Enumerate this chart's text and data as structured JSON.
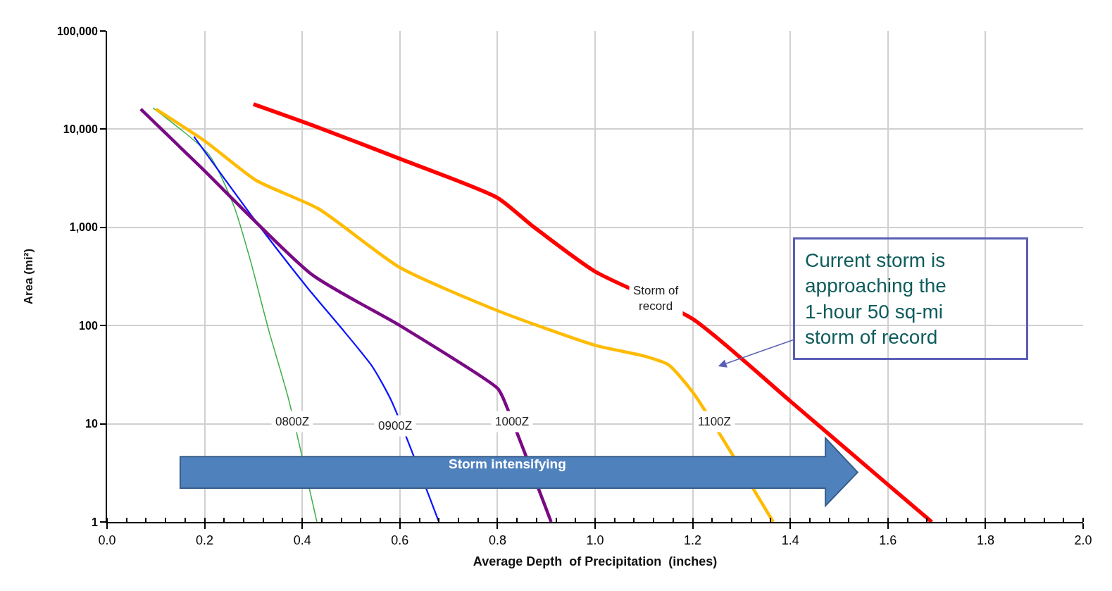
{
  "chart_data": {
    "type": "line",
    "xlabel": "Average Depth  of Precipitation  (inches)",
    "ylabel": "Area (mi²)",
    "log": "y",
    "grid": true,
    "legend": false,
    "marker": "none",
    "line_style": "solid",
    "xlim": [
      0,
      2.0
    ],
    "xticks": [
      {
        "value": 0,
        "label": "0.0"
      },
      {
        "value": 0.2,
        "label": "0.2"
      },
      {
        "value": 0.4,
        "label": "0.4"
      },
      {
        "value": 0.6,
        "label": "0.6"
      },
      {
        "value": 0.8,
        "label": "0.8"
      },
      {
        "value": 1.0,
        "label": "1.0"
      },
      {
        "value": 1.2,
        "label": "1.2"
      },
      {
        "value": 1.4,
        "label": "1.4"
      },
      {
        "value": 1.6,
        "label": "1.6"
      },
      {
        "value": 1.8,
        "label": "1.8"
      },
      {
        "value": 2.0,
        "label": "2.0"
      }
    ],
    "ylim": [
      1,
      100000
    ],
    "yticks": [
      1,
      10,
      100,
      {
        "value": 1000,
        "label": "1,000"
      },
      {
        "value": 10000,
        "label": "10,000"
      },
      {
        "value": 100000,
        "label": "100,000"
      }
    ],
    "series": [
      {
        "name": "0800Z",
        "color": "#3cae48",
        "x": [
          0.094,
          0.209,
          0.26,
          0.293,
          0.332,
          0.371,
          0.43
        ],
        "values": [
          16500,
          5500,
          1650,
          475,
          87,
          18.6,
          1
        ]
      },
      {
        "name": "0900Z",
        "color": "#0a14ff",
        "x": [
          0.178,
          0.3,
          0.41,
          0.486,
          0.544,
          0.583,
          0.68
        ],
        "values": [
          8400,
          1240,
          245,
          87,
          38,
          17,
          1
        ]
      },
      {
        "name": "1000Z",
        "color": "#7a0a84",
        "x": [
          0.069,
          0.19,
          0.42,
          0.6,
          0.8,
          0.81,
          0.91
        ],
        "values": [
          16000,
          4200,
          330,
          100,
          23,
          19,
          1
        ]
      },
      {
        "name": "1100Z",
        "color": "#ffbb00",
        "x": [
          0.1,
          0.2,
          0.306,
          0.433,
          0.6,
          0.8,
          1.0,
          1.1,
          1.15,
          1.2,
          1.365
        ],
        "values": [
          16000,
          7600,
          3000,
          1550,
          390,
          142,
          63,
          49,
          40,
          21,
          1
        ]
      },
      {
        "name": "Storm of record",
        "color": "#ff0000",
        "x": [
          0.3,
          0.42,
          0.6,
          0.8,
          0.87,
          1.0,
          1.2,
          1.4,
          1.6,
          1.69
        ],
        "values": [
          18000,
          11000,
          5000,
          2000,
          1050,
          355,
          117,
          17,
          2.4,
          1
        ]
      }
    ],
    "annotations": [
      "Current storm is approaching the 1-hour 50 sq-mi storm of record",
      "Storm intensifying"
    ]
  }
}
